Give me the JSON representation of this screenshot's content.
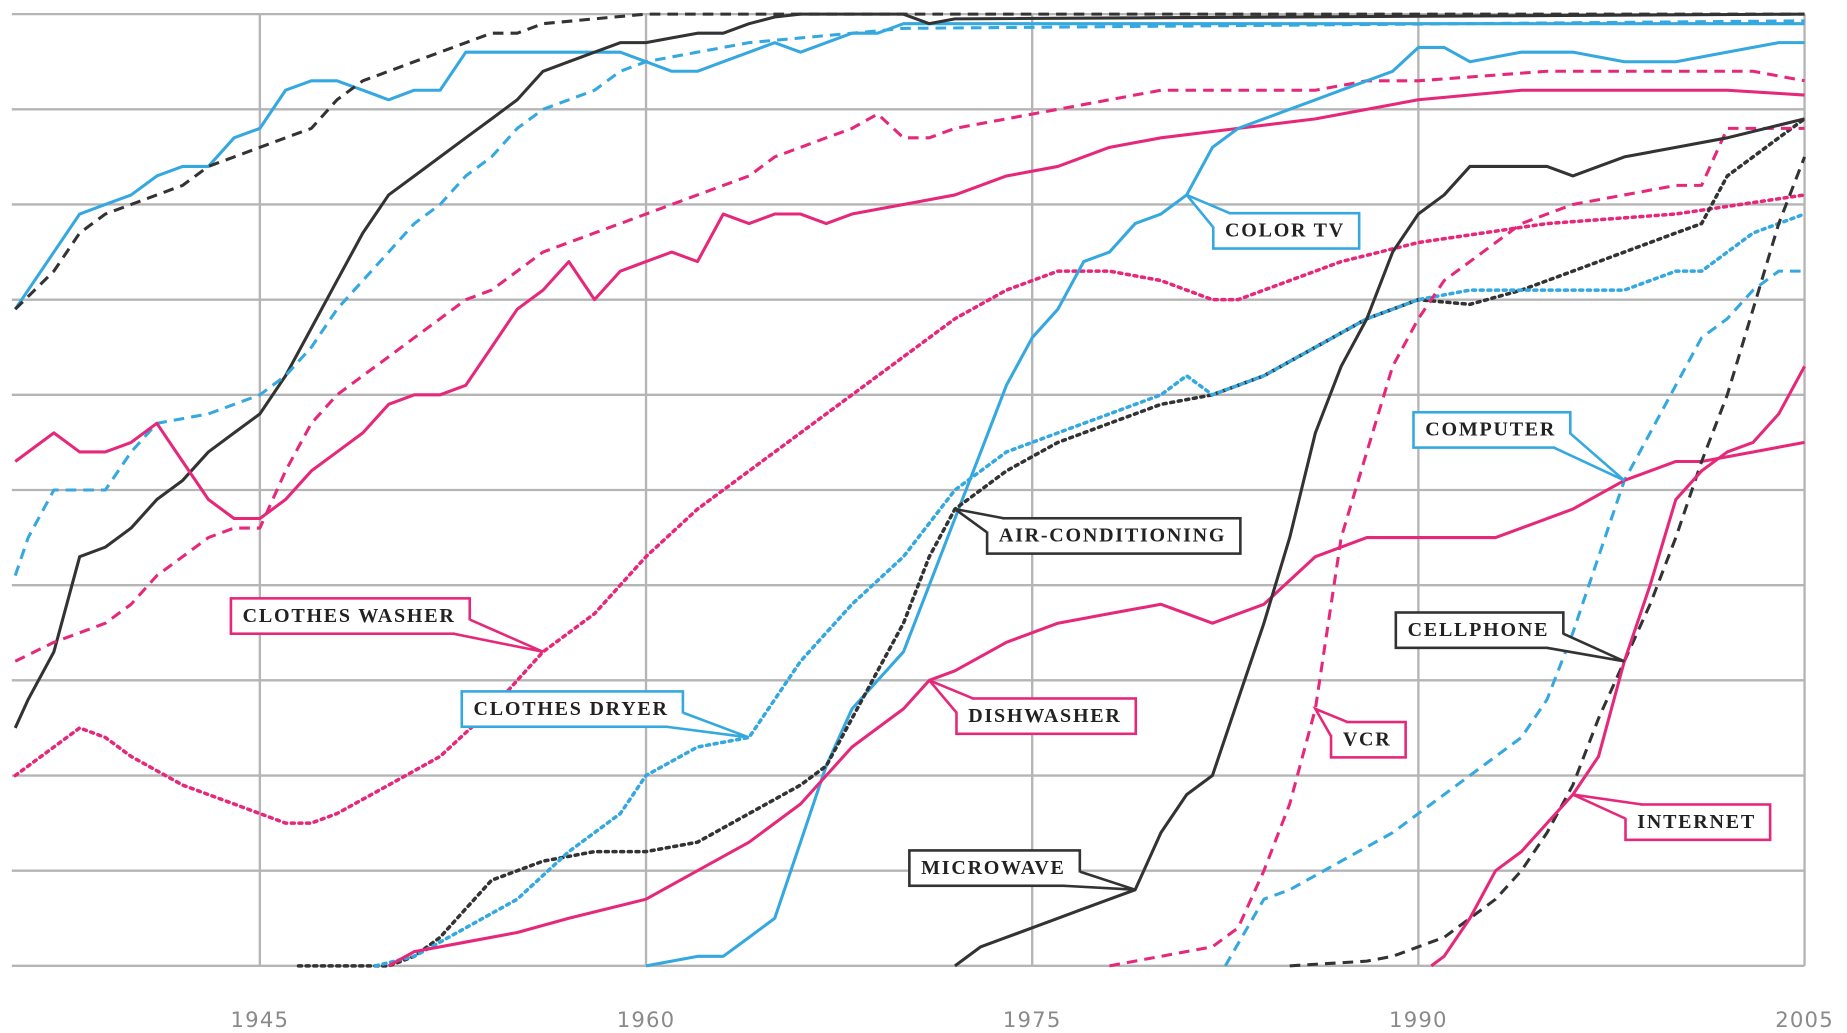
{
  "chart_data": {
    "type": "line",
    "xlim": [
      1935,
      2005
    ],
    "xticks": [
      1945,
      1960,
      1975,
      1990,
      2005
    ],
    "ylim": [
      0,
      100
    ],
    "yticks": [
      0,
      10,
      20,
      30,
      40,
      50,
      60,
      70,
      80,
      90,
      100
    ],
    "grid": true,
    "series": [
      {
        "color": "#35a8e0",
        "line_style": "solid",
        "x": [
          1935.5,
          1937,
          1938,
          1939,
          1940,
          1941,
          1942,
          1943,
          1944,
          1945,
          1946,
          1947,
          1948,
          1949,
          1950,
          1951,
          1952,
          1953,
          1954,
          1955,
          1956,
          1957,
          1958,
          1959,
          1960,
          1961,
          1962,
          1963,
          1964,
          1965,
          1966,
          1967,
          1968,
          1969,
          1970,
          2005
        ],
        "values": [
          69,
          75,
          79,
          80,
          81,
          83,
          84,
          84,
          87,
          88,
          92,
          93,
          93,
          92,
          91,
          92,
          92,
          96,
          96,
          96,
          96,
          96,
          96,
          96,
          95,
          94,
          94,
          95,
          96,
          97,
          96,
          97,
          98,
          98,
          99,
          99
        ]
      },
      {
        "color": "#333333",
        "line_style": "dashed",
        "x": [
          1935.5,
          1937,
          1938,
          1939,
          1940,
          1941,
          1942,
          1943,
          1944,
          1945,
          1946,
          1947,
          1948,
          1949,
          1950,
          1951,
          1952,
          1953,
          1954,
          1955,
          1956,
          1958,
          1960,
          2005
        ],
        "values": [
          69,
          73,
          77,
          79,
          80,
          81,
          82,
          84,
          85,
          86,
          87,
          88,
          91,
          93,
          94,
          95,
          96,
          97,
          98,
          98,
          99,
          99.5,
          100,
          100
        ]
      },
      {
        "color": "#333333",
        "line_style": "solid",
        "x": [
          1935.5,
          1936,
          1937,
          1938,
          1939,
          1940,
          1941,
          1942,
          1943,
          1944,
          1945,
          1946,
          1947,
          1948,
          1949,
          1950,
          1951,
          1952,
          1953,
          1954,
          1955,
          1956,
          1957,
          1958,
          1959,
          1960,
          1961,
          1962,
          1963,
          1964,
          1965,
          1966,
          1970,
          1971,
          1972,
          2005
        ],
        "values": [
          25,
          28,
          33,
          43,
          44,
          46,
          49,
          51,
          54,
          56,
          58,
          62,
          67,
          72,
          77,
          81,
          83,
          85,
          87,
          89,
          91,
          94,
          95,
          96,
          97,
          97,
          97.5,
          98,
          98,
          99,
          99.7,
          100,
          100,
          99,
          99.5,
          100
        ]
      },
      {
        "color": "#35a8e0",
        "line_style": "dashed",
        "x": [
          1935.5,
          1936,
          1937,
          1939,
          1940,
          1941,
          1943,
          1945,
          1946,
          1947,
          1948,
          1949,
          1950,
          1951,
          1952,
          1953,
          1954,
          1955,
          1956,
          1957,
          1958,
          1959,
          1960,
          1962,
          1964,
          1966,
          1968,
          1970,
          2005
        ],
        "values": [
          41,
          45,
          50,
          50,
          54,
          57,
          58,
          60,
          62,
          65,
          69,
          72,
          75,
          78,
          80,
          83,
          85,
          88,
          90,
          91,
          92,
          94,
          95,
          96,
          97,
          97.5,
          98,
          98.5,
          99.3
        ]
      },
      {
        "color": "#e6287a",
        "line_style": "dashed",
        "x": [
          1935.5,
          1937,
          1939,
          1940,
          1941,
          1942,
          1943,
          1944,
          1945,
          1946,
          1947,
          1948,
          1949,
          1950,
          1951,
          1952,
          1953,
          1954,
          1955,
          1956,
          1957,
          1958,
          1959,
          1960,
          1961,
          1962,
          1963,
          1964,
          1965,
          1966,
          1967,
          1968,
          1969,
          1970,
          1971,
          1972,
          1974,
          1976,
          1978,
          1980,
          1982,
          1984,
          1986,
          1988,
          1990,
          1995,
          2000,
          2003,
          2005
        ],
        "values": [
          32,
          34,
          36,
          38,
          41,
          43,
          45,
          46,
          46,
          52,
          57,
          60,
          62,
          64,
          66,
          68,
          70,
          71,
          73,
          75,
          76,
          77,
          78,
          79,
          80,
          81,
          82,
          83,
          85,
          86,
          87,
          88,
          89.5,
          87,
          87,
          88,
          89,
          90,
          91,
          92,
          92,
          92,
          92,
          93,
          93,
          94,
          94,
          94,
          93
        ]
      },
      {
        "color": "#e6287a",
        "line_style": "solid",
        "x": [
          1935.5,
          1937,
          1938,
          1939,
          1940,
          1941,
          1942,
          1943,
          1944,
          1945,
          1946,
          1947,
          1948,
          1949,
          1950,
          1951,
          1952,
          1953,
          1954,
          1955,
          1956,
          1957,
          1958,
          1959,
          1960,
          1961,
          1962,
          1963,
          1964,
          1965,
          1966,
          1967,
          1968,
          1970,
          1972,
          1974,
          1976,
          1978,
          1980,
          1983,
          1986,
          1990,
          1994,
          1998,
          2002,
          2005
        ],
        "values": [
          53,
          56,
          54,
          54,
          55,
          57,
          53,
          49,
          47,
          47,
          49,
          52,
          54,
          56,
          59,
          60,
          60,
          61,
          65,
          69,
          71,
          74,
          70,
          73,
          74,
          75,
          74,
          79,
          78,
          79,
          79,
          78,
          79,
          80,
          81,
          83,
          84,
          86,
          87,
          88,
          89,
          91,
          92,
          92,
          92,
          91.5
        ]
      },
      {
        "name": "CLOTHES WASHER",
        "color": "#e6287a",
        "line_style": "dotted",
        "x": [
          1935.5,
          1937,
          1938,
          1939,
          1940,
          1942,
          1944,
          1946,
          1947,
          1948,
          1950,
          1952,
          1954,
          1956,
          1958,
          1960,
          1962,
          1964,
          1966,
          1968,
          1970,
          1972,
          1974,
          1976,
          1978,
          1980,
          1982,
          1983,
          1985,
          1987,
          1990,
          1995,
          2000,
          2005
        ],
        "values": [
          20,
          23,
          25,
          24,
          22,
          19,
          17,
          15,
          15,
          16,
          19,
          22,
          27,
          33,
          37,
          43,
          48,
          52,
          56,
          60,
          64,
          68,
          71,
          73,
          73,
          72,
          70,
          70,
          72,
          74,
          76,
          78,
          79,
          81
        ]
      },
      {
        "name": "COLOR TV",
        "color": "#35a8e0",
        "line_style": "solid",
        "x": [
          1960,
          1962,
          1963,
          1964,
          1965,
          1966,
          1967,
          1968,
          1969,
          1970,
          1971,
          1972,
          1973,
          1974,
          1975,
          1976,
          1977,
          1978,
          1979,
          1980,
          1981,
          1982,
          1983,
          1984,
          1985,
          1986,
          1987,
          1988,
          1989,
          1990,
          1991,
          1992,
          1994,
          1996,
          1998,
          2000,
          2002,
          2004,
          2005
        ],
        "values": [
          0,
          1,
          1,
          3,
          5,
          13,
          21,
          27,
          30,
          33,
          40,
          47,
          54,
          61,
          66,
          69,
          74,
          75,
          78,
          79,
          81,
          86,
          88,
          89,
          90,
          91,
          92,
          93,
          94,
          96.5,
          96.5,
          95,
          96,
          96,
          95,
          95,
          96,
          97,
          97
        ]
      },
      {
        "name": "COMPUTER",
        "color": "#35a8e0",
        "line_style": "dashed",
        "x": [
          1982.5,
          1984,
          1985,
          1987,
          1989,
          1990,
          1992,
          1994,
          1995,
          1996,
          1997,
          1998,
          1999,
          2000,
          2001,
          2002,
          2003,
          2004,
          2005
        ],
        "values": [
          0,
          7,
          8,
          11,
          14,
          16,
          20,
          24,
          28,
          35,
          43,
          51,
          56,
          61,
          66,
          68,
          71,
          73,
          73
        ]
      },
      {
        "name": "AIR-CONDITIONING",
        "color": "#333333",
        "line_style": "dotted",
        "x": [
          1946.5,
          1950,
          1951,
          1952,
          1953,
          1954,
          1956,
          1958,
          1960,
          1962,
          1964,
          1966,
          1967,
          1968,
          1969,
          1970,
          1971,
          1972,
          1973,
          1974,
          1976,
          1978,
          1980,
          1982,
          1984,
          1986,
          1988,
          1990,
          1992,
          1994,
          1996,
          1998,
          2000,
          2001,
          2002,
          2004,
          2005
        ],
        "values": [
          0,
          0,
          1,
          3,
          6,
          9,
          11,
          12,
          12,
          13,
          16,
          19,
          21,
          26,
          31,
          36,
          43,
          48,
          50,
          52,
          55,
          57,
          59,
          60,
          62,
          65,
          68,
          70,
          69.5,
          71,
          73,
          75,
          77,
          78,
          83,
          87,
          89
        ]
      },
      {
        "name": "CLOTHES DRYER",
        "color": "#35a8e0",
        "line_style": "dotted",
        "x": [
          1949.5,
          1951,
          1953,
          1955,
          1957,
          1959,
          1960,
          1962,
          1964,
          1966,
          1968,
          1970,
          1972,
          1974,
          1976,
          1978,
          1980,
          1981,
          1982,
          1984,
          1986,
          1988,
          1990,
          1992,
          1995,
          1998,
          2000,
          2001,
          2003,
          2005
        ],
        "values": [
          0,
          1,
          4,
          7,
          12,
          16,
          20,
          23,
          24,
          32,
          38,
          43,
          50,
          54,
          56,
          58,
          60,
          62,
          60,
          62,
          65,
          68,
          70,
          71,
          71,
          71,
          73,
          73,
          77,
          79
        ]
      },
      {
        "name": "DISHWASHER",
        "color": "#e6287a",
        "line_style": "solid",
        "x": [
          1950,
          1951,
          1953,
          1955,
          1957,
          1960,
          1962,
          1964,
          1966,
          1968,
          1970,
          1971,
          1972,
          1974,
          1976,
          1978,
          1980,
          1981,
          1982,
          1984,
          1986,
          1988,
          1990,
          1993,
          1994,
          1996,
          1998,
          2000,
          2001,
          2003,
          2005
        ],
        "values": [
          0,
          1.5,
          2.5,
          3.5,
          5,
          7,
          10,
          13,
          17,
          23,
          27,
          30,
          31,
          34,
          36,
          37,
          38,
          37,
          36,
          38,
          43,
          45,
          45,
          45,
          46,
          48,
          51,
          53,
          53,
          54,
          55
        ]
      },
      {
        "name": "VCR",
        "color": "#e6287a",
        "line_style": "dashed",
        "x": [
          1978,
          1980,
          1982,
          1983,
          1984,
          1985,
          1986,
          1987,
          1988,
          1989,
          1990,
          1991,
          1992,
          1994,
          1996,
          1998,
          2000,
          2001,
          2002,
          2005
        ],
        "values": [
          0,
          1,
          2,
          4,
          10,
          17,
          27,
          45,
          54,
          63,
          68,
          72,
          74,
          78,
          80,
          81,
          82,
          82,
          88,
          88
        ]
      },
      {
        "name": "MICROWAVE",
        "color": "#333333",
        "line_style": "solid",
        "x": [
          1972,
          1973,
          1974,
          1975,
          1976,
          1977,
          1978,
          1979,
          1980,
          1981,
          1982,
          1983,
          1984,
          1985,
          1986,
          1987,
          1988,
          1989,
          1990,
          1991,
          1992,
          1993,
          1994,
          1995,
          1996,
          1997,
          1998,
          2000,
          2002,
          2005
        ],
        "values": [
          0,
          2,
          3,
          4,
          5,
          6,
          7,
          8,
          14,
          18,
          20,
          28,
          36,
          45,
          56,
          63,
          68,
          75,
          79,
          81,
          84,
          84,
          84,
          84,
          83,
          84,
          85,
          86,
          87,
          89
        ]
      },
      {
        "name": "CELLPHONE",
        "color": "#333333",
        "line_style": "dashed",
        "x": [
          1985,
          1988,
          1989,
          1990,
          1991,
          1992,
          1993,
          1994,
          1995,
          1996,
          1997,
          1998,
          1999,
          2000,
          2001,
          2002,
          2003,
          2004,
          2005
        ],
        "values": [
          0,
          0.5,
          1,
          2,
          3,
          5,
          7,
          10,
          14,
          19,
          26,
          32,
          38,
          45,
          53,
          60,
          69,
          78,
          85
        ]
      },
      {
        "name": "INTERNET",
        "color": "#e6287a",
        "line_style": "solid",
        "x": [
          1990.5,
          1991,
          1992,
          1993,
          1994,
          1995,
          1996,
          1997,
          1998,
          1999,
          2000,
          2001,
          2002,
          2003,
          2004,
          2005
        ],
        "values": [
          0,
          1,
          5,
          10,
          12,
          15,
          18,
          22,
          32,
          40,
          49,
          52,
          54,
          55,
          58,
          63
        ]
      }
    ]
  }
}
